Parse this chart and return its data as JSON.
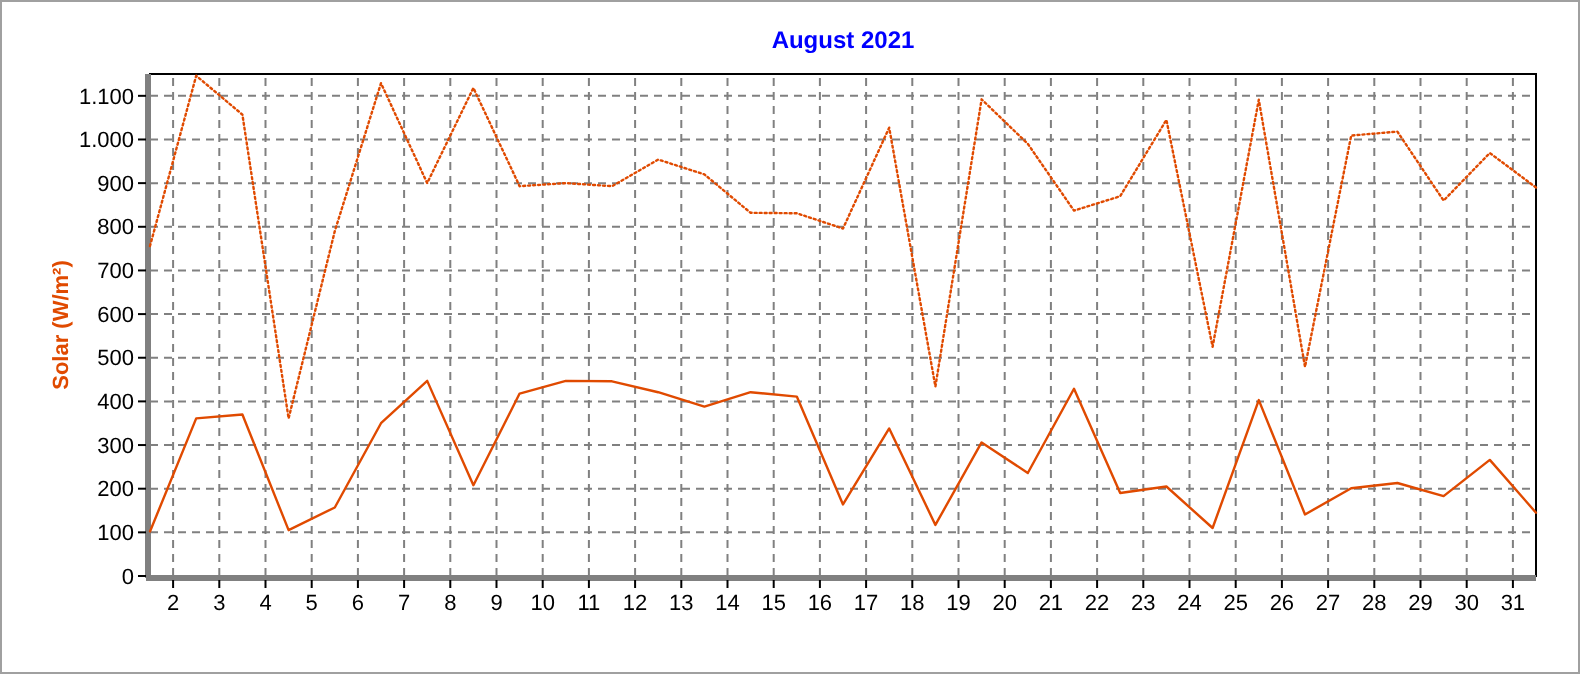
{
  "chart_data": {
    "type": "line",
    "title": "August 2021",
    "ylabel": "Solar  (W/m²)",
    "x": [
      1.5,
      2.5,
      3.5,
      4.5,
      5.5,
      6.5,
      7.5,
      8.5,
      9.5,
      10.5,
      11.5,
      12.5,
      13.5,
      14.5,
      15.5,
      16.5,
      17.5,
      18.5,
      19.5,
      20.5,
      21.5,
      22.5,
      23.5,
      24.5,
      25.5,
      26.5,
      27.5,
      28.5,
      29.5,
      30.5,
      31.5
    ],
    "series": [
      {
        "color": "#e04a00",
        "line_style": "dotted",
        "values": [
          756,
          1146,
          1057,
          361,
          790,
          1129,
          900,
          1118,
          893,
          900,
          893,
          954,
          920,
          832,
          831,
          796,
          1027,
          434,
          1092,
          990,
          837,
          870,
          1045,
          525,
          1091,
          479,
          1009,
          1018,
          860,
          969,
          890
        ]
      },
      {
        "color": "#e04a00",
        "line_style": "solid",
        "values": [
          102,
          361,
          370,
          105,
          157,
          350,
          447,
          208,
          418,
          447,
          446,
          421,
          388,
          421,
          411,
          164,
          338,
          117,
          306,
          236,
          429,
          190,
          205,
          110,
          403,
          141,
          201,
          213,
          183,
          266,
          145
        ]
      }
    ],
    "xlim": [
      1.5,
      31.5
    ],
    "xticks": [
      2,
      3,
      4,
      5,
      6,
      7,
      8,
      9,
      10,
      11,
      12,
      13,
      14,
      15,
      16,
      17,
      18,
      19,
      20,
      21,
      22,
      23,
      24,
      25,
      26,
      27,
      28,
      29,
      30,
      31
    ],
    "ylim": [
      0,
      1150
    ],
    "yticks": [
      0,
      100,
      200,
      300,
      400,
      500,
      600,
      700,
      800,
      900,
      {
        "value": 1000,
        "label": "1.000"
      },
      {
        "value": 1100,
        "label": "1.100"
      }
    ],
    "grid": true
  }
}
